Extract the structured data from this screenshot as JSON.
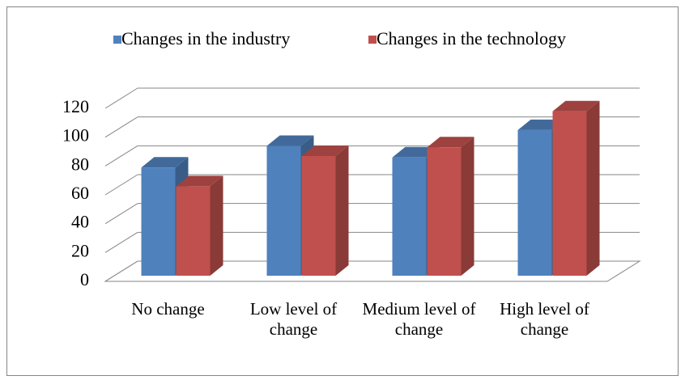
{
  "chart_data": {
    "type": "bar3d",
    "categories": [
      "No change",
      "Low level of change",
      "Medium level of change",
      "High level of change"
    ],
    "series": [
      {
        "name": "Changes in the industry",
        "color": "#4f81bd",
        "values": [
          75,
          90,
          82,
          101
        ]
      },
      {
        "name": "Changes in the technology",
        "color": "#c0504d",
        "values": [
          62,
          83,
          89,
          114
        ]
      }
    ],
    "ylim": [
      0,
      120
    ],
    "yticks": [
      0,
      20,
      40,
      60,
      80,
      100,
      120
    ],
    "grid": true,
    "legend": "top"
  }
}
